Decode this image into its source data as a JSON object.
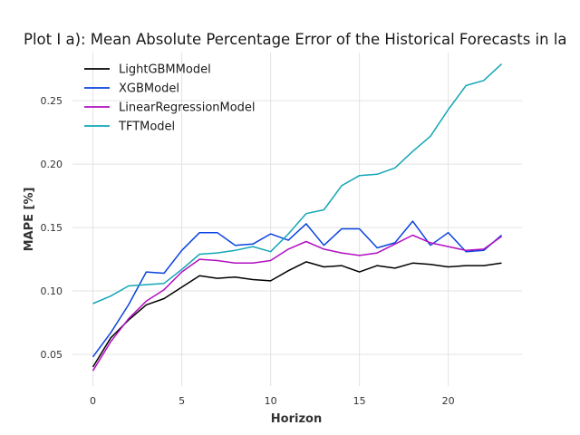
{
  "chart_data": {
    "type": "line",
    "title": "Plot I a): Mean Absolute Percentage Error of the Historical Forecasts in la",
    "xlabel": "Horizon",
    "ylabel": "MAPE [%]",
    "xlim": [
      -1.15,
      24.15
    ],
    "ylim": [
      0.025,
      0.288
    ],
    "xticks": [
      0,
      5,
      10,
      15,
      20
    ],
    "yticks": [
      0.05,
      0.1,
      0.15,
      0.2,
      0.25
    ],
    "grid": true,
    "legend_position": "top-left",
    "x": [
      0,
      1,
      2,
      3,
      4,
      5,
      6,
      7,
      8,
      9,
      10,
      11,
      12,
      13,
      14,
      15,
      16,
      17,
      18,
      19,
      20,
      21,
      22,
      23
    ],
    "series": [
      {
        "name": "LightGBMModel",
        "color": "#000000",
        "values": [
          0.04,
          0.063,
          0.077,
          0.089,
          0.094,
          0.103,
          0.112,
          0.11,
          0.111,
          0.109,
          0.108,
          0.116,
          0.123,
          0.119,
          0.12,
          0.115,
          0.12,
          0.118,
          0.122,
          0.121,
          0.119,
          0.12,
          0.12,
          0.122
        ]
      },
      {
        "name": "XGBModel",
        "color": "#0a43e0",
        "values": [
          0.048,
          0.067,
          0.089,
          0.115,
          0.114,
          0.132,
          0.146,
          0.146,
          0.136,
          0.137,
          0.145,
          0.14,
          0.153,
          0.136,
          0.149,
          0.149,
          0.134,
          0.138,
          0.155,
          0.136,
          0.146,
          0.131,
          0.132,
          0.144
        ]
      },
      {
        "name": "LinearRegressionModel",
        "color": "#b10fc0",
        "values": [
          0.037,
          0.06,
          0.078,
          0.092,
          0.101,
          0.115,
          0.125,
          0.124,
          0.122,
          0.122,
          0.124,
          0.133,
          0.139,
          0.133,
          0.13,
          0.128,
          0.13,
          0.137,
          0.144,
          0.138,
          0.135,
          0.132,
          0.133,
          0.143
        ]
      },
      {
        "name": "TFTModel",
        "color": "#13a6b5",
        "values": [
          0.09,
          0.096,
          0.104,
          0.105,
          0.106,
          0.117,
          0.129,
          0.13,
          0.132,
          0.135,
          0.131,
          0.145,
          0.161,
          0.164,
          0.183,
          0.191,
          0.192,
          0.197,
          0.21,
          0.222,
          0.243,
          0.262,
          0.266,
          0.279
        ]
      }
    ]
  }
}
